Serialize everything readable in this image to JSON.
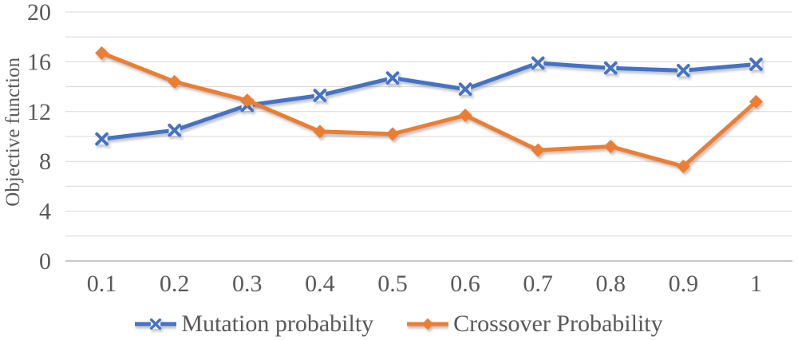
{
  "chart_data": {
    "type": "line",
    "categories": [
      "0.1",
      "0.2",
      "0.3",
      "0.4",
      "0.5",
      "0.6",
      "0.7",
      "0.8",
      "0.9",
      "1"
    ],
    "series": [
      {
        "name": "Mutation probabilty",
        "color": "#4472C4",
        "marker": "x",
        "values": [
          9.8,
          10.5,
          12.5,
          13.3,
          14.7,
          13.8,
          15.9,
          15.5,
          15.3,
          15.8
        ]
      },
      {
        "name": "Crossover Probability",
        "color": "#ED7D31",
        "marker": "diamond",
        "values": [
          16.7,
          14.4,
          12.9,
          10.4,
          10.2,
          11.7,
          8.9,
          9.2,
          7.6,
          12.8
        ]
      }
    ],
    "ylabel": "Objective function",
    "ylim": [
      0,
      20
    ],
    "y_major_ticks": [
      0,
      4,
      8,
      12,
      16,
      20
    ],
    "y_gridline_step": 2,
    "grid": true,
    "legend_position": "bottom"
  },
  "style": {
    "text_color": "#595959",
    "gridline_color": "#D9D9D9",
    "axis_line_color": "#BFBFBF",
    "background": "#FFFFFF"
  }
}
